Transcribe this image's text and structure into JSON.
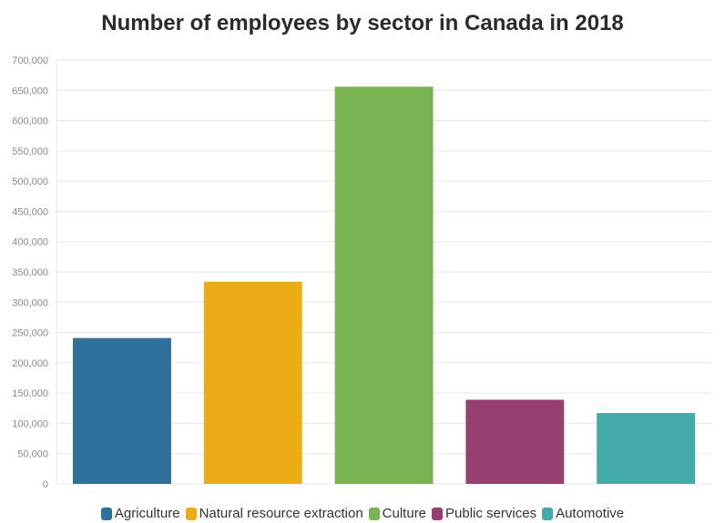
{
  "chart_data": {
    "type": "bar",
    "title": "Number of employees by sector in Canada in 2018",
    "categories": [
      "Agriculture",
      "Natural resource extraction",
      "Culture",
      "Public services",
      "Automotive"
    ],
    "values": [
      241000,
      334000,
      656000,
      139000,
      117000
    ],
    "colors": [
      "#2e6f9b",
      "#ecac18",
      "#79b251",
      "#983f72",
      "#43aaa9"
    ],
    "ylim": [
      0,
      700000
    ],
    "yticks": [
      "0",
      "50,000",
      "100,000",
      "150,000",
      "200,000",
      "250,000",
      "300,000",
      "350,000",
      "400,000",
      "450,000",
      "500,000",
      "550,000",
      "600,000",
      "650,000",
      "700,000"
    ],
    "grid": true,
    "legend_position": "bottom"
  }
}
